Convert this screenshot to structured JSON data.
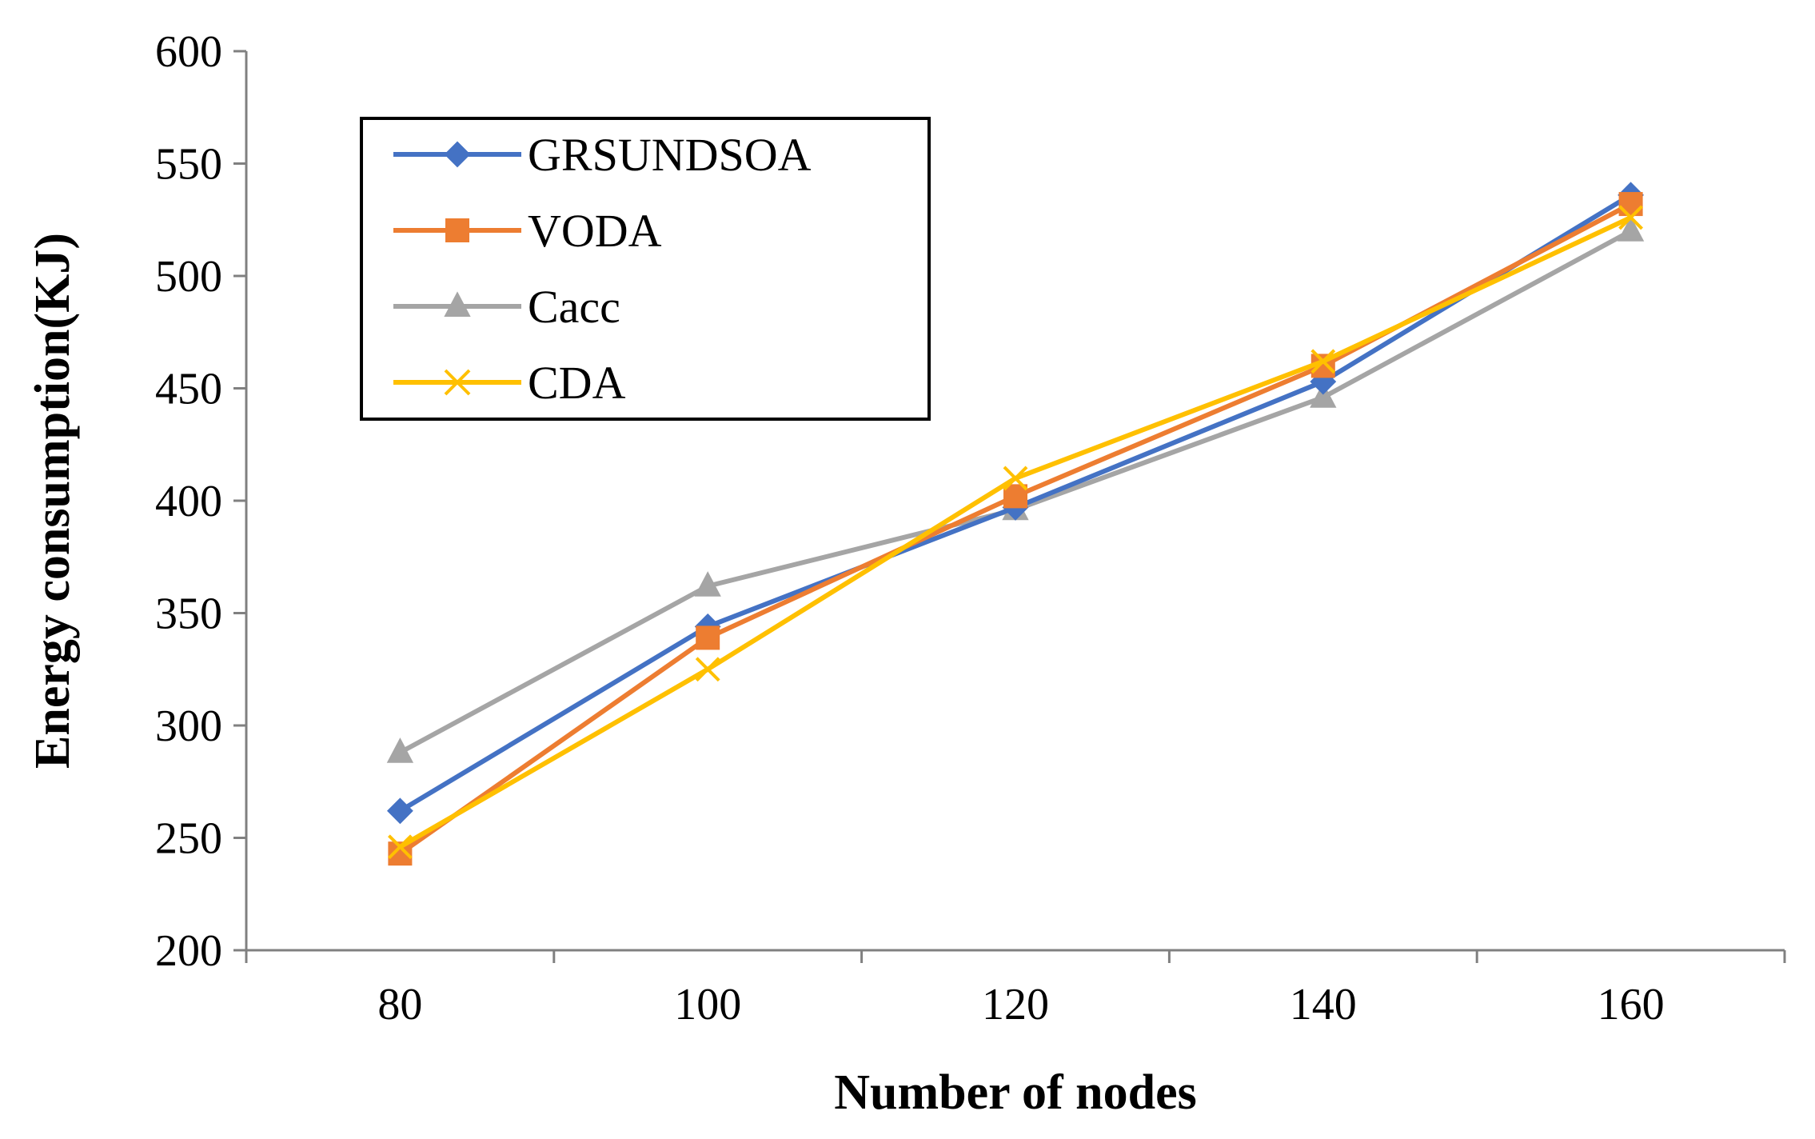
{
  "chart_data": {
    "type": "line",
    "title": "",
    "xlabel": "Number of nodes",
    "ylabel": "Energy consumption(KJ)",
    "x": [
      "80",
      "100",
      "120",
      "140",
      "160"
    ],
    "ylim": [
      200,
      600
    ],
    "yticks": [
      "200",
      "250",
      "300",
      "350",
      "400",
      "450",
      "500",
      "550",
      "600"
    ],
    "legend_position": "top-left",
    "grid": false,
    "series": [
      {
        "name": "GRSUNDSOA",
        "values": [
          262,
          344,
          397,
          453,
          536
        ],
        "color": "#4472c4",
        "marker": "diamond"
      },
      {
        "name": "VODA",
        "values": [
          243,
          339,
          402,
          460,
          532
        ],
        "color": "#ed7d31",
        "marker": "square"
      },
      {
        "name": "Cacc",
        "values": [
          288,
          362,
          396,
          446,
          520
        ],
        "color": "#a5a5a5",
        "marker": "triangle"
      },
      {
        "name": "CDA",
        "values": [
          246,
          325,
          410,
          462,
          526
        ],
        "color": "#ffc000",
        "marker": "x"
      }
    ]
  }
}
